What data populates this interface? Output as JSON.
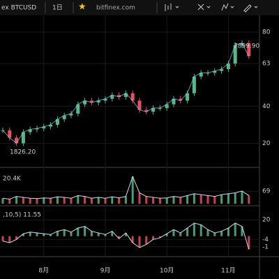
{
  "toolbar": {
    "symbol": "ex BTCUSD",
    "interval": "1日",
    "star": "★",
    "source": "bitfinex.com"
  },
  "chart_data": [
    {
      "type": "candlestick",
      "annotations": [
        "7899.90",
        "1826.20"
      ],
      "values": [
        2700,
        2300,
        2000,
        2600,
        2750,
        2800,
        2900,
        3000,
        3300,
        3500,
        3600,
        4100,
        4300,
        4200,
        4300,
        4400,
        4600,
        4500,
        4700,
        4300,
        3800,
        3700,
        3900,
        3900,
        4100,
        4400,
        4300,
        4700,
        5600,
        5800,
        5800,
        5900,
        6000,
        6300,
        7300,
        7400,
        6700
      ],
      "ylim": [
        1000,
        8600
      ],
      "yticks": [
        {
          "value": 8000,
          "label": "80"
        },
        {
          "value": 6300,
          "label": "63"
        },
        {
          "value": 4000,
          "label": "40"
        },
        {
          "value": 2000,
          "label": "20"
        }
      ],
      "xticks": [
        {
          "value": 6,
          "label": "8月"
        },
        {
          "value": 15,
          "label": "9月"
        },
        {
          "value": 24,
          "label": "10月"
        },
        {
          "value": 33,
          "label": "11月"
        }
      ]
    },
    {
      "type": "bar",
      "title": "20.4K",
      "values": [
        30,
        25,
        40,
        35,
        30,
        28,
        32,
        30,
        38,
        35,
        30,
        45,
        40,
        30,
        35,
        30,
        38,
        32,
        40,
        150,
        60,
        40,
        35,
        30,
        32,
        40,
        35,
        45,
        55,
        50,
        45,
        40,
        50,
        55,
        60,
        70,
        45
      ],
      "ylim": [
        0,
        170
      ],
      "yticks": [
        69
      ]
    },
    {
      "type": "bar",
      "title": ",10,5) 11.55",
      "values": [
        -6,
        -8,
        -4,
        3,
        5,
        4,
        3,
        2,
        6,
        8,
        5,
        10,
        12,
        6,
        4,
        2,
        6,
        -3,
        4,
        -8,
        -14,
        -10,
        -4,
        -2,
        3,
        8,
        4,
        10,
        16,
        14,
        8,
        4,
        6,
        10,
        16,
        12,
        -16
      ],
      "ylim": [
        -20,
        33
      ],
      "yticks": [
        20,
        -4,
        {
          "value": -13,
          "label": "-1"
        }
      ]
    }
  ]
}
